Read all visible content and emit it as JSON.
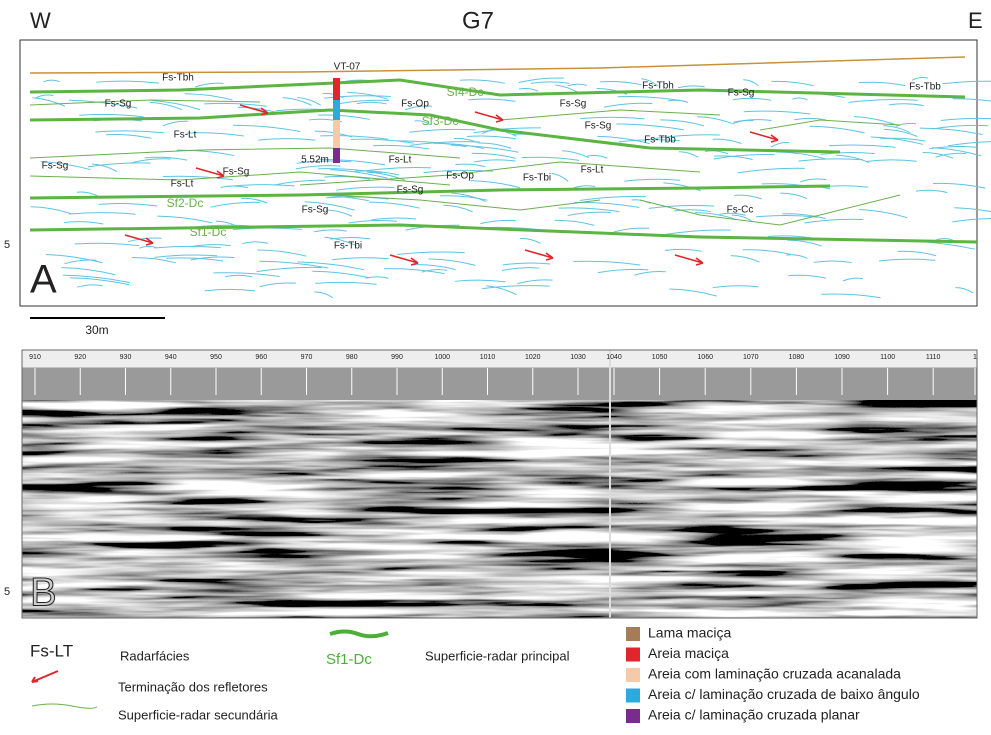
{
  "header": {
    "west": "W",
    "title": "G7",
    "east": "E"
  },
  "margin_labels": [
    "5",
    "5"
  ],
  "panel_a": {
    "label": "A",
    "scale": "30m",
    "well": "VT-07",
    "depth": "5.52m",
    "facies": [
      "Fs-Tbh",
      "Fs-Sg",
      "Fs-Op",
      "Fs-Sg",
      "Fs-Tbh",
      "Fs-Sg",
      "Fs-Tbb",
      "Fs-Lt",
      "Fs-Sg",
      "Fs-Tbb",
      "Fs-Lt",
      "Fs-Sg",
      "Fs-Sg",
      "Fs-Op",
      "Fs-Tbi",
      "Fs-Lt",
      "Fs-Lt",
      "Fs-Sg",
      "Fs-Sg",
      "Fs-Cc",
      "Fs-Tbi"
    ],
    "surfaces": [
      "Sf4-Dc",
      "Sf3-Dc",
      "Sf2-Dc",
      "Sf1-Dc"
    ]
  },
  "panel_b": {
    "label": "B",
    "ruler": [
      "910",
      "920",
      "930",
      "940",
      "950",
      "960",
      "970",
      "980",
      "990",
      "1000",
      "1010",
      "1020",
      "1030",
      "1040",
      "1050",
      "1060",
      "1070",
      "1080",
      "1090",
      "1100",
      "1110",
      "1"
    ]
  },
  "legend": {
    "facies_code": "Fs-LT",
    "facies_text": "Radarfácies",
    "arrow_text": "Terminação dos refletores",
    "secondary_text": "Superficie-radar secundária",
    "principal_code": "Sf1-Dc",
    "principal_text": "Superficie-radar principal",
    "lithology": [
      {
        "label": "Lama maciça",
        "color": "#a47c55"
      },
      {
        "label": "Areia maciça",
        "color": "#e0262b"
      },
      {
        "label": "Areia com laminação cruzada acanalada",
        "color": "#f6c9a8"
      },
      {
        "label": "Areia c/ laminação cruzada de baixo ângulo",
        "color": "#2ea9dc"
      },
      {
        "label": "Areia c/ laminação cruzada planar",
        "color": "#7b2b8e"
      }
    ]
  }
}
